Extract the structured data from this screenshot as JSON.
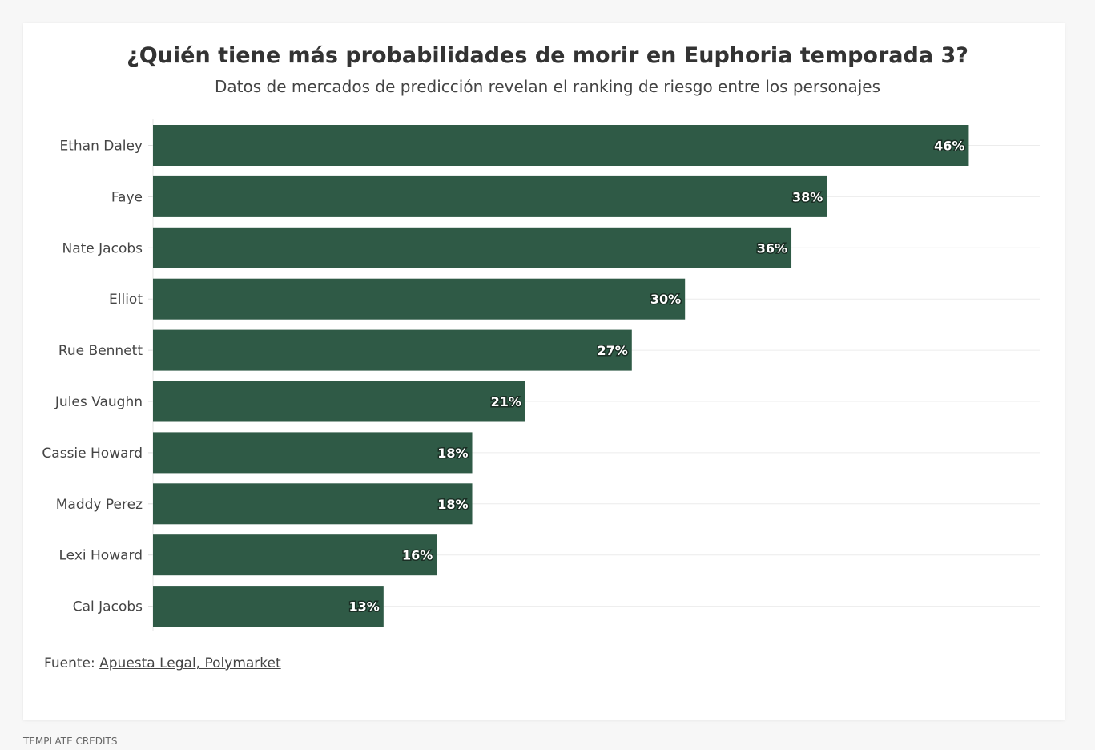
{
  "title": "¿Quién tiene más probabilidades de morir en Euphoria temporada 3?",
  "subtitle": "Datos de mercados de predicción revelan el ranking de riesgo entre los personajes",
  "source_label": "Fuente:",
  "source_link": "Apuesta Legal, Polymarket",
  "credits": "TEMPLATE CREDITS",
  "colors": {
    "bar": "#2f5a46"
  },
  "chart_data": {
    "type": "bar",
    "orientation": "horizontal",
    "categories": [
      "Ethan Daley",
      "Faye",
      "Nate Jacobs",
      "Elliot",
      "Rue Bennett",
      "Jules Vaughn",
      "Cassie Howard",
      "Maddy Perez",
      "Lexi Howard",
      "Cal Jacobs"
    ],
    "values": [
      46,
      38,
      36,
      30,
      27,
      21,
      18,
      18,
      16,
      13
    ],
    "data_labels": [
      "46%",
      "38%",
      "36%",
      "30%",
      "27%",
      "21%",
      "18%",
      "18%",
      "16%",
      "13%"
    ],
    "xlim": [
      0,
      50
    ],
    "grid": true,
    "title": "¿Quién tiene más probabilidades de morir en Euphoria temporada 3?",
    "subtitle": "Datos de mercados de predicción revelan el ranking de riesgo entre los personajes"
  }
}
